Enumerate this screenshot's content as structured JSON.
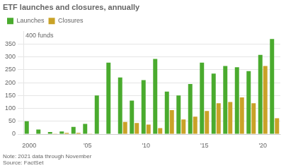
{
  "chart_data": {
    "type": "bar",
    "title": "ETF launches and closures, annually",
    "categories": [
      "2000",
      null,
      null,
      null,
      null,
      "'05",
      null,
      null,
      null,
      null,
      "'10",
      null,
      null,
      null,
      null,
      "'15",
      null,
      null,
      null,
      null,
      "'20",
      null
    ],
    "series": [
      {
        "name": "Launches",
        "color": "#4aab2e",
        "values": [
          50,
          18,
          8,
          10,
          28,
          40,
          150,
          278,
          220,
          130,
          210,
          292,
          165,
          150,
          195,
          278,
          235,
          265,
          260,
          245,
          308,
          370
        ]
      },
      {
        "name": "Closures",
        "color": "#c9a227",
        "values": [
          0,
          0,
          2,
          5,
          5,
          2,
          0,
          0,
          47,
          43,
          37,
          23,
          93,
          57,
          68,
          90,
          120,
          125,
          143,
          120,
          265,
          62
        ]
      }
    ],
    "ylim": [
      0,
      400
    ],
    "yticks": [
      0,
      50,
      100,
      150,
      200,
      250,
      300,
      350
    ],
    "grid": true,
    "legend": "upper left",
    "annotations": [
      {
        "text": "400 funds",
        "y": 400
      }
    ],
    "notes": [
      "Note: 2021 data through November",
      "Source: FactSet"
    ]
  }
}
